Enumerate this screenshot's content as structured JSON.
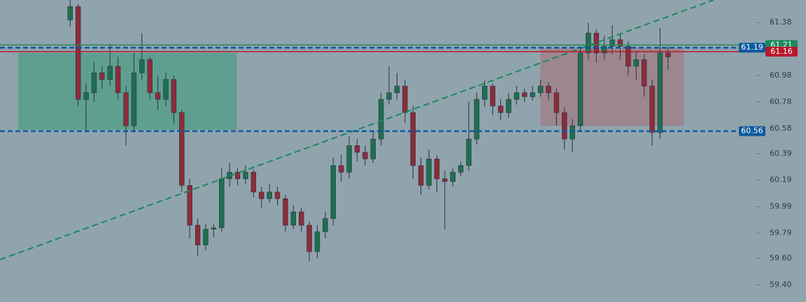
{
  "chart_data": {
    "type": "candlestick",
    "ylim": [
      59.27,
      61.55
    ],
    "xlim": [
      -8.8,
      92.3
    ],
    "yticks": [
      {
        "value": 59.4,
        "label": "59.40"
      },
      {
        "value": 59.6,
        "label": "59.60"
      },
      59.79,
      59.99,
      60.19,
      60.39,
      60.58,
      60.78,
      60.98,
      61.38
    ],
    "up_color": "#1f6e52",
    "down_color": "#8c2c3c",
    "candles": [
      [
        61.4,
        61.56,
        61.35,
        61.5
      ],
      [
        61.5,
        61.52,
        60.75,
        60.8
      ],
      [
        60.8,
        60.92,
        60.55,
        60.85
      ],
      [
        60.85,
        61.08,
        60.78,
        61.0
      ],
      [
        61.0,
        61.05,
        60.88,
        60.95
      ],
      [
        60.95,
        61.22,
        60.9,
        61.05
      ],
      [
        61.05,
        61.12,
        60.8,
        60.85
      ],
      [
        60.85,
        60.9,
        60.45,
        60.6
      ],
      [
        60.6,
        61.15,
        60.55,
        61.0
      ],
      [
        61.0,
        61.3,
        60.95,
        61.1
      ],
      [
        61.1,
        61.12,
        60.8,
        60.85
      ],
      [
        60.85,
        60.98,
        60.72,
        60.8
      ],
      [
        60.8,
        61.0,
        60.75,
        60.95
      ],
      [
        60.95,
        60.98,
        60.62,
        60.7
      ],
      [
        60.7,
        60.72,
        60.1,
        60.15
      ],
      [
        60.15,
        60.2,
        59.75,
        59.85
      ],
      [
        59.85,
        59.9,
        59.62,
        59.7
      ],
      [
        59.7,
        59.86,
        59.66,
        59.82
      ],
      [
        59.82,
        59.86,
        59.76,
        59.83
      ],
      [
        59.83,
        60.28,
        59.8,
        60.2
      ],
      [
        60.2,
        60.32,
        60.14,
        60.25
      ],
      [
        60.25,
        60.28,
        60.15,
        60.2
      ],
      [
        60.2,
        60.3,
        60.16,
        60.25
      ],
      [
        60.25,
        60.27,
        60.06,
        60.1
      ],
      [
        60.1,
        60.14,
        59.98,
        60.05
      ],
      [
        60.05,
        60.16,
        60.02,
        60.1
      ],
      [
        60.1,
        60.14,
        60.0,
        60.05
      ],
      [
        60.05,
        60.08,
        59.8,
        59.85
      ],
      [
        59.85,
        60.0,
        59.82,
        59.95
      ],
      [
        59.95,
        59.98,
        59.8,
        59.85
      ],
      [
        59.85,
        59.88,
        59.58,
        59.65
      ],
      [
        59.65,
        59.85,
        59.6,
        59.8
      ],
      [
        59.8,
        59.95,
        59.75,
        59.9
      ],
      [
        59.9,
        60.36,
        59.85,
        60.3
      ],
      [
        60.3,
        60.38,
        60.18,
        60.25
      ],
      [
        60.25,
        60.52,
        60.2,
        60.45
      ],
      [
        60.45,
        60.5,
        60.33,
        60.4
      ],
      [
        60.4,
        60.45,
        60.3,
        60.35
      ],
      [
        60.35,
        60.56,
        60.32,
        60.5
      ],
      [
        60.5,
        60.85,
        60.45,
        60.8
      ],
      [
        60.8,
        61.05,
        60.76,
        60.85
      ],
      [
        60.85,
        61.0,
        60.8,
        60.9
      ],
      [
        60.9,
        60.95,
        60.62,
        60.7
      ],
      [
        60.7,
        60.75,
        60.2,
        60.3
      ],
      [
        60.3,
        60.36,
        60.08,
        60.15
      ],
      [
        60.15,
        60.42,
        60.12,
        60.35
      ],
      [
        60.35,
        60.38,
        60.1,
        60.2
      ],
      [
        60.2,
        60.26,
        59.82,
        60.18
      ],
      [
        60.18,
        60.28,
        60.14,
        60.25
      ],
      [
        60.25,
        60.33,
        60.22,
        60.3
      ],
      [
        60.3,
        60.78,
        60.26,
        60.5
      ],
      [
        60.5,
        60.85,
        60.46,
        60.8
      ],
      [
        60.8,
        60.94,
        60.74,
        60.9
      ],
      [
        60.9,
        60.92,
        60.68,
        60.75
      ],
      [
        60.75,
        60.8,
        60.64,
        60.7
      ],
      [
        60.7,
        60.85,
        60.66,
        60.8
      ],
      [
        60.8,
        60.9,
        60.76,
        60.85
      ],
      [
        60.85,
        60.88,
        60.78,
        60.82
      ],
      [
        60.82,
        60.9,
        60.79,
        60.85
      ],
      [
        60.85,
        60.95,
        60.82,
        60.9
      ],
      [
        60.9,
        60.93,
        60.8,
        60.85
      ],
      [
        60.85,
        60.88,
        60.6,
        60.7
      ],
      [
        60.7,
        60.74,
        60.42,
        60.5
      ],
      [
        60.5,
        60.65,
        60.4,
        60.6
      ],
      [
        60.6,
        61.2,
        60.56,
        61.15
      ],
      [
        61.15,
        61.38,
        61.1,
        61.3
      ],
      [
        61.3,
        61.33,
        61.08,
        61.15
      ],
      [
        61.15,
        61.28,
        61.1,
        61.2
      ],
      [
        61.2,
        61.36,
        61.14,
        61.25
      ],
      [
        61.25,
        61.3,
        61.1,
        61.2
      ],
      [
        61.2,
        61.24,
        60.98,
        61.05
      ],
      [
        61.05,
        61.16,
        60.95,
        61.1
      ],
      [
        61.1,
        61.14,
        60.82,
        60.9
      ],
      [
        60.9,
        60.95,
        60.45,
        60.55
      ],
      [
        60.55,
        61.34,
        60.5,
        61.15
      ],
      [
        61.15,
        61.2,
        61.02,
        61.12
      ]
    ],
    "zones": [
      {
        "x": [
          -6.5,
          20.9
        ],
        "y": [
          60.57,
          61.15
        ],
        "color": "#4f9e86"
      },
      {
        "x": [
          59.0,
          77.0
        ],
        "y": [
          60.6,
          61.185
        ],
        "color": "#a07c86"
      }
    ],
    "trendline": {
      "x": [
        -8.8,
        80.7
      ],
      "y": [
        59.59,
        61.55
      ],
      "color": "#1a8a5a"
    },
    "levels": [
      {
        "value": 61.21,
        "color": "#1a8a5a",
        "style": "solid"
      },
      {
        "value": 61.19,
        "color": "#0d5a9e",
        "style": "dashed"
      },
      {
        "value": 61.16,
        "color": "#b8182c",
        "style": "solid"
      },
      {
        "value": 60.56,
        "color": "#0d5a9e",
        "style": "dashed"
      }
    ]
  }
}
